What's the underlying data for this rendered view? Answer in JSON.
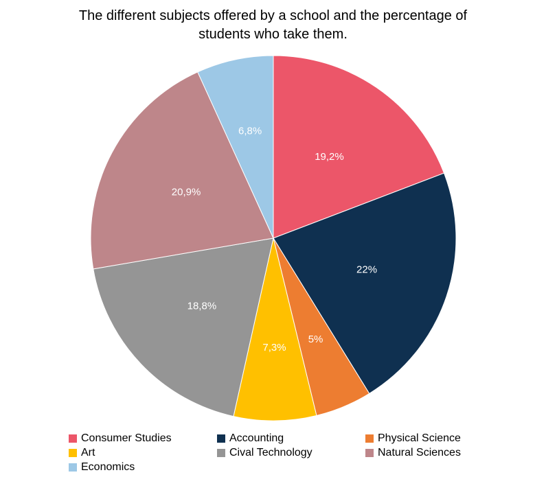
{
  "chart_data": {
    "type": "pie",
    "title_line1": "The different subjects offered by a school and the percentage of",
    "title_line2": "students who take them.",
    "slices": [
      {
        "name": "Consumer Studies",
        "value": 19.2,
        "label": "19,2%",
        "color": "#EC5669"
      },
      {
        "name": "Accounting",
        "value": 22,
        "label": "22%",
        "color": "#0F3050"
      },
      {
        "name": "Physical Science",
        "value": 5,
        "label": "5%",
        "color": "#ED7D31"
      },
      {
        "name": "Art",
        "value": 7.3,
        "label": "7,3%",
        "color": "#FFC000"
      },
      {
        "name": "Cival Technology",
        "value": 18.8,
        "label": "18,8%",
        "color": "#959595"
      },
      {
        "name": "Natural Sciences",
        "value": 20.9,
        "label": "20,9%",
        "color": "#BE868A"
      },
      {
        "name": "Economics",
        "value": 6.8,
        "label": "6,8%",
        "color": "#9DC8E6"
      }
    ],
    "legend_position": "bottom"
  }
}
